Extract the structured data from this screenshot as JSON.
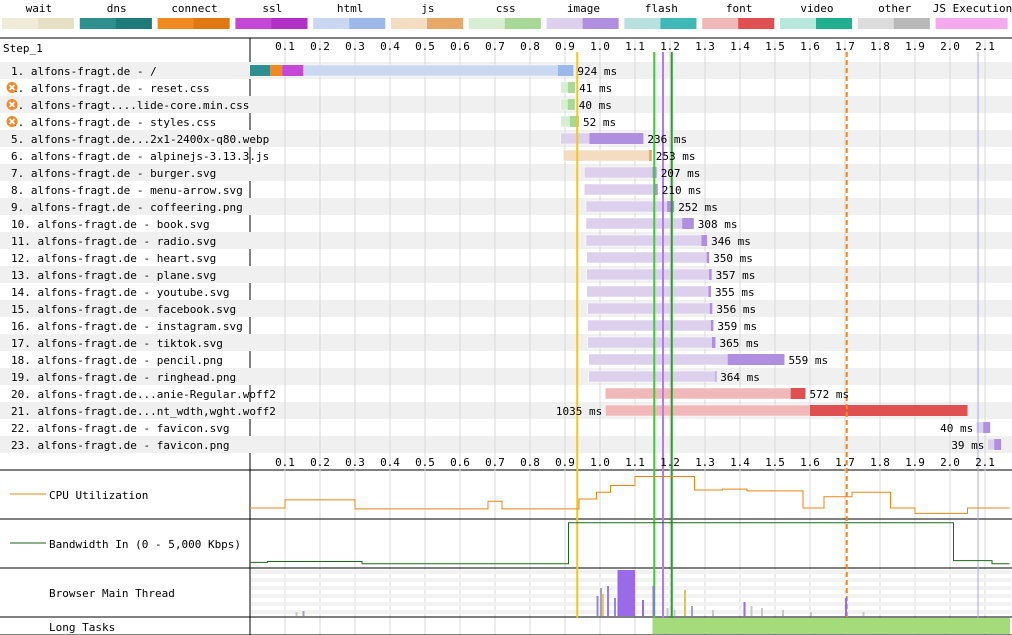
{
  "legend": [
    {
      "label": "wait",
      "color": "#f0ecd8",
      "shade": "#e6e1c4"
    },
    {
      "label": "dns",
      "color": "#2f8e8e",
      "shade": "#1f7a7a"
    },
    {
      "label": "connect",
      "color": "#f0891f",
      "shade": "#e07810"
    },
    {
      "label": "ssl",
      "color": "#c547d6",
      "shade": "#b030c5"
    },
    {
      "label": "html",
      "color": "#c9d8f0",
      "shade": "#9cb8e8"
    },
    {
      "label": "js",
      "color": "#f3dcc0",
      "shade": "#e8a868"
    },
    {
      "label": "css",
      "color": "#d7eed3",
      "shade": "#a8d898"
    },
    {
      "label": "image",
      "color": "#dcd0ec",
      "shade": "#b08ee0"
    },
    {
      "label": "flash",
      "color": "#b8e0df",
      "shade": "#40b8b8"
    },
    {
      "label": "font",
      "color": "#f0b8b8",
      "shade": "#e05050"
    },
    {
      "label": "video",
      "color": "#b8e8dc",
      "shade": "#20b090"
    },
    {
      "label": "other",
      "color": "#dcdcdc",
      "shade": "#b8b8b8"
    },
    {
      "label": "JS Execution",
      "color": "#f4a8ee",
      "shade": "#f4a8ee"
    }
  ],
  "step_label": "Step_1",
  "ticks": [
    "0.1",
    "0.2",
    "0.3",
    "0.4",
    "0.5",
    "0.6",
    "0.7",
    "0.8",
    "0.9",
    "1.0",
    "1.1",
    "1.2",
    "1.3",
    "1.4",
    "1.5",
    "1.6",
    "1.7",
    "1.8",
    "1.9",
    "2.0",
    "2.1"
  ],
  "markers": [
    {
      "t": 0.935,
      "color": "#f5c518",
      "dash": false
    },
    {
      "t": 1.155,
      "color": "#3ccc3c",
      "dash": false
    },
    {
      "t": 1.18,
      "color": "#b27cf0",
      "dash": false
    },
    {
      "t": 1.205,
      "color": "#2aa02a",
      "dash": false
    },
    {
      "t": 1.705,
      "color": "#f08a24",
      "dash": true
    },
    {
      "t": 2.08,
      "color": "#a8a8f0",
      "dash": false
    }
  ],
  "requests": [
    {
      "label": "1. alfons-fragt.de - /",
      "type": "html",
      "start": 0.0,
      "dur": 0.924,
      "ms": "924 ms",
      "phases": [
        [
          "dns",
          0.0,
          0.058
        ],
        [
          "connect",
          0.058,
          0.092
        ],
        [
          "ssl",
          0.092,
          0.152
        ]
      ],
      "ttfb": 0.88,
      "blocked": false
    },
    {
      "label": "2. alfons-fragt.de - reset.css",
      "type": "css",
      "start": 0.888,
      "dur": 0.041,
      "ms": "41 ms",
      "blocked": true
    },
    {
      "label": "3. alfons-fragt....lide-core.min.css",
      "type": "css",
      "start": 0.888,
      "dur": 0.04,
      "ms": "40 ms",
      "blocked": true
    },
    {
      "label": "4. alfons-fragt.de - styles.css",
      "type": "css",
      "start": 0.888,
      "dur": 0.052,
      "ms": "52 ms",
      "blocked": true
    },
    {
      "label": "5. alfons-fragt.de...2x1-2400x-q80.webp",
      "type": "image",
      "start": 0.888,
      "dur": 0.236,
      "ms": "236 ms",
      "ttfb": 0.97,
      "blocked": false
    },
    {
      "label": "6. alfons-fragt.de - alpinejs-3.13.3.js",
      "type": "js",
      "start": 0.895,
      "dur": 0.253,
      "ms": "253 ms",
      "ttfb": 1.14,
      "blocked": false
    },
    {
      "label": "7. alfons-fragt.de - burger.svg",
      "type": "image",
      "start": 0.955,
      "dur": 0.207,
      "ms": "207 ms",
      "ttfb": 1.15,
      "blocked": false
    },
    {
      "label": "8. alfons-fragt.de - menu-arrow.svg",
      "type": "image",
      "start": 0.955,
      "dur": 0.21,
      "ms": "210 ms",
      "ttfb": 1.155,
      "blocked": false
    },
    {
      "label": "9. alfons-fragt.de - coffeering.png",
      "type": "image",
      "start": 0.96,
      "dur": 0.252,
      "ms": "252 ms",
      "ttfb": 1.192,
      "blocked": false
    },
    {
      "label": "10. alfons-fragt.de - book.svg",
      "type": "image",
      "start": 0.96,
      "dur": 0.308,
      "ms": "308 ms",
      "ttfb": 1.235,
      "blocked": false
    },
    {
      "label": "11. alfons-fragt.de - radio.svg",
      "type": "image",
      "start": 0.96,
      "dur": 0.346,
      "ms": "346 ms",
      "ttfb": 1.29,
      "blocked": false
    },
    {
      "label": "12. alfons-fragt.de - heart.svg",
      "type": "image",
      "start": 0.962,
      "dur": 0.35,
      "ms": "350 ms",
      "ttfb": 1.305,
      "blocked": false
    },
    {
      "label": "13. alfons-fragt.de - plane.svg",
      "type": "image",
      "start": 0.962,
      "dur": 0.357,
      "ms": "357 ms",
      "ttfb": 1.312,
      "blocked": false
    },
    {
      "label": "14. alfons-fragt.de - youtube.svg",
      "type": "image",
      "start": 0.962,
      "dur": 0.355,
      "ms": "355 ms",
      "ttfb": 1.31,
      "blocked": false
    },
    {
      "label": "15. alfons-fragt.de - facebook.svg",
      "type": "image",
      "start": 0.965,
      "dur": 0.356,
      "ms": "356 ms",
      "ttfb": 1.314,
      "blocked": false
    },
    {
      "label": "16. alfons-fragt.de - instagram.svg",
      "type": "image",
      "start": 0.965,
      "dur": 0.359,
      "ms": "359 ms",
      "ttfb": 1.317,
      "blocked": false
    },
    {
      "label": "17. alfons-fragt.de - tiktok.svg",
      "type": "image",
      "start": 0.965,
      "dur": 0.365,
      "ms": "365 ms",
      "ttfb": 1.32,
      "blocked": false
    },
    {
      "label": "18. alfons-fragt.de - pencil.png",
      "type": "image",
      "start": 0.968,
      "dur": 0.559,
      "ms": "559 ms",
      "ttfb": 1.365,
      "blocked": false
    },
    {
      "label": "19. alfons-fragt.de - ringhead.png",
      "type": "image",
      "start": 0.968,
      "dur": 0.364,
      "ms": "364 ms",
      "ttfb": 1.33,
      "blocked": false
    },
    {
      "label": "20. alfons-fragt.de...anie-Regular.woff2",
      "type": "font",
      "start": 1.015,
      "dur": 0.572,
      "ms": "572 ms",
      "ttfb": 1.545,
      "blocked": false
    },
    {
      "label": "21. alfons-fragt.de...nt_wdth,wght.woff2",
      "type": "font",
      "start": 1.015,
      "dur": 1.035,
      "ms": "1035 ms",
      "ttfb": 1.6,
      "blocked": false,
      "ms_left": true
    },
    {
      "label": "22. alfons-fragt.de - favicon.svg",
      "type": "image",
      "start": 2.075,
      "dur": 0.04,
      "ms": "40 ms",
      "blocked": false,
      "ms_left": true
    },
    {
      "label": "23. alfons-fragt.de - favicon.png",
      "type": "image",
      "start": 2.107,
      "dur": 0.039,
      "ms": "39 ms",
      "blocked": false,
      "ms_left": true
    }
  ],
  "graphs": {
    "cpu_label": "CPU Utilization",
    "bandwidth_label": "Bandwidth In (0 - 5,000 Kbps)",
    "main_thread_label": "Browser Main Thread",
    "long_tasks_label": "Long Tasks",
    "cpu_color": "#e8851a",
    "bandwidth_color": "#1a6a1a",
    "long_task_color": "#a4dc7c",
    "long_task_start": 1.15
  }
}
